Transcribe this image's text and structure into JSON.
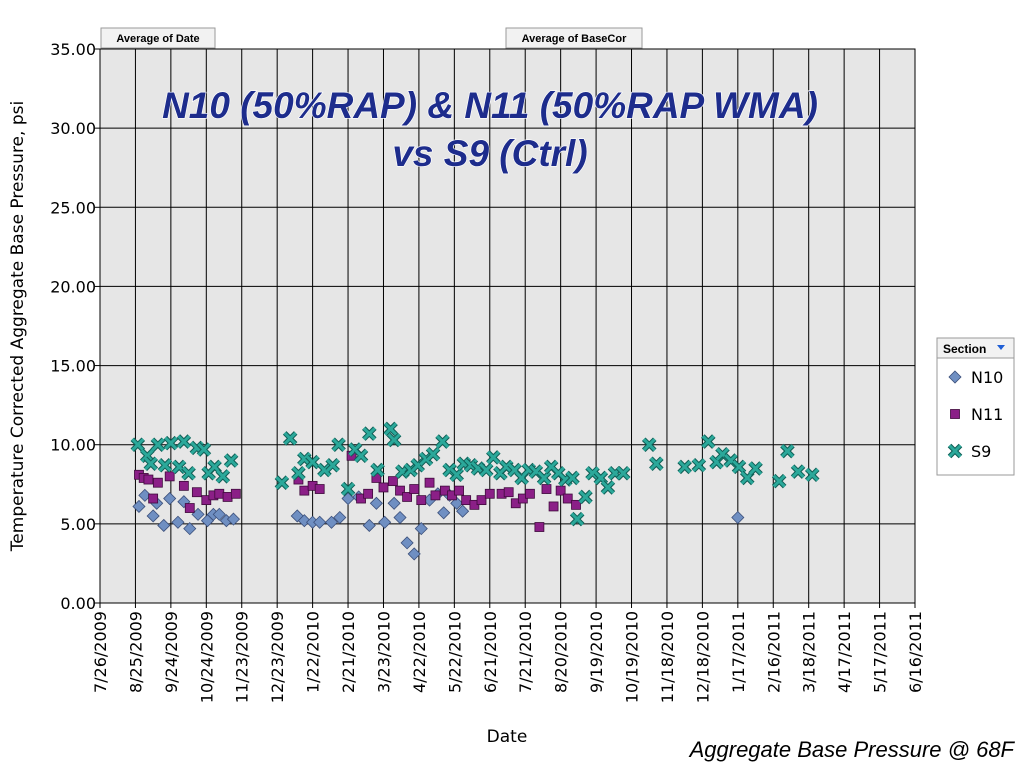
{
  "buttons": {
    "date_field": "Average of Date",
    "value_field": "Average of BaseCor"
  },
  "overlay_title": {
    "line1": "N10 (50%RAP) & N11 (50%RAP WMA)",
    "line2": "vs S9 (Ctrl)"
  },
  "footer": "Aggregate Base Pressure @ 68F",
  "legend": {
    "title": "Section",
    "items": [
      {
        "label": "N10",
        "marker": "diamond",
        "color": "#6f8fc2"
      },
      {
        "label": "N11",
        "marker": "square",
        "color": "#8b1f87"
      },
      {
        "label": "S9",
        "marker": "x",
        "color": "#2ba89a"
      }
    ]
  },
  "chart_data": {
    "type": "scatter",
    "xlabel": "Date",
    "ylabel": "Temperature Corrected Aggregate Base Pressure, psi",
    "x_ticks": [
      "7/26/2009",
      "8/25/2009",
      "9/24/2009",
      "10/24/2009",
      "11/23/2009",
      "12/23/2009",
      "1/22/2010",
      "2/21/2010",
      "3/23/2010",
      "4/22/2010",
      "5/22/2010",
      "6/21/2010",
      "7/21/2010",
      "8/20/2010",
      "9/19/2010",
      "10/19/2010",
      "11/18/2010",
      "12/18/2010",
      "1/17/2011",
      "2/16/2011",
      "3/18/2011",
      "4/17/2011",
      "5/17/2011",
      "6/16/2011"
    ],
    "y_ticks": [
      "0.00",
      "5.00",
      "10.00",
      "15.00",
      "20.00",
      "25.00",
      "30.00",
      "35.00"
    ],
    "xlim": [
      "2009-07-26",
      "2011-06-16"
    ],
    "ylim": [
      0,
      35
    ],
    "grid": true,
    "legend_position": "right",
    "series": [
      {
        "name": "N10",
        "marker": "diamond",
        "color": "#6f8fc2",
        "points": [
          [
            "2009-08-28",
            6.1
          ],
          [
            "2009-09-02",
            6.8
          ],
          [
            "2009-09-09",
            5.5
          ],
          [
            "2009-09-12",
            6.3
          ],
          [
            "2009-09-18",
            4.9
          ],
          [
            "2009-09-23",
            6.6
          ],
          [
            "2009-09-30",
            5.1
          ],
          [
            "2009-10-05",
            6.4
          ],
          [
            "2009-10-10",
            4.7
          ],
          [
            "2009-10-17",
            5.6
          ],
          [
            "2009-10-25",
            5.2
          ],
          [
            "2009-10-30",
            5.6
          ],
          [
            "2009-11-04",
            5.6
          ],
          [
            "2009-11-10",
            5.2
          ],
          [
            "2009-11-16",
            5.3
          ],
          [
            "2010-01-09",
            5.5
          ],
          [
            "2010-01-15",
            5.2
          ],
          [
            "2010-01-22",
            5.1
          ],
          [
            "2010-01-28",
            5.1
          ],
          [
            "2010-02-07",
            5.1
          ],
          [
            "2010-02-14",
            5.4
          ],
          [
            "2010-02-21",
            6.6
          ],
          [
            "2010-03-02",
            6.7
          ],
          [
            "2010-03-11",
            4.9
          ],
          [
            "2010-03-17",
            6.3
          ],
          [
            "2010-03-24",
            5.1
          ],
          [
            "2010-04-01",
            6.3
          ],
          [
            "2010-04-06",
            5.4
          ],
          [
            "2010-04-12",
            3.8
          ],
          [
            "2010-04-18",
            3.1
          ],
          [
            "2010-04-24",
            4.7
          ],
          [
            "2010-05-01",
            6.5
          ],
          [
            "2010-05-08",
            6.9
          ],
          [
            "2010-05-13",
            5.7
          ],
          [
            "2010-05-18",
            6.8
          ],
          [
            "2010-05-24",
            6.3
          ],
          [
            "2010-05-29",
            5.8
          ],
          [
            "2011-01-17",
            5.4
          ]
        ]
      },
      {
        "name": "N11",
        "marker": "square",
        "color": "#8b1f87",
        "points": [
          [
            "2009-08-28",
            8.1
          ],
          [
            "2009-09-01",
            7.9
          ],
          [
            "2009-09-05",
            7.8
          ],
          [
            "2009-09-09",
            6.6
          ],
          [
            "2009-09-13",
            7.6
          ],
          [
            "2009-09-23",
            8.0
          ],
          [
            "2009-10-05",
            7.4
          ],
          [
            "2009-10-10",
            6.0
          ],
          [
            "2009-10-16",
            7.0
          ],
          [
            "2009-10-24",
            6.5
          ],
          [
            "2009-10-30",
            6.8
          ],
          [
            "2009-11-04",
            6.9
          ],
          [
            "2009-11-11",
            6.7
          ],
          [
            "2009-11-18",
            6.9
          ],
          [
            "2010-01-10",
            7.8
          ],
          [
            "2010-01-15",
            7.1
          ],
          [
            "2010-01-22",
            7.4
          ],
          [
            "2010-01-28",
            7.2
          ],
          [
            "2010-02-24",
            9.3
          ],
          [
            "2010-03-04",
            6.6
          ],
          [
            "2010-03-10",
            6.9
          ],
          [
            "2010-03-17",
            7.9
          ],
          [
            "2010-03-23",
            7.3
          ],
          [
            "2010-03-31",
            7.7
          ],
          [
            "2010-04-06",
            7.1
          ],
          [
            "2010-04-12",
            6.7
          ],
          [
            "2010-04-18",
            7.2
          ],
          [
            "2010-04-24",
            6.5
          ],
          [
            "2010-05-01",
            7.6
          ],
          [
            "2010-05-06",
            6.8
          ],
          [
            "2010-05-14",
            7.1
          ],
          [
            "2010-05-20",
            6.8
          ],
          [
            "2010-05-26",
            7.1
          ],
          [
            "2010-06-01",
            6.5
          ],
          [
            "2010-06-08",
            6.2
          ],
          [
            "2010-06-14",
            6.5
          ],
          [
            "2010-06-21",
            6.9
          ],
          [
            "2010-07-01",
            6.9
          ],
          [
            "2010-07-07",
            7.0
          ],
          [
            "2010-07-13",
            6.3
          ],
          [
            "2010-07-19",
            6.6
          ],
          [
            "2010-07-25",
            6.9
          ],
          [
            "2010-08-02",
            4.8
          ],
          [
            "2010-08-08",
            7.2
          ],
          [
            "2010-08-14",
            6.1
          ],
          [
            "2010-08-20",
            7.1
          ],
          [
            "2010-08-26",
            6.6
          ],
          [
            "2010-09-02",
            6.2
          ]
        ]
      },
      {
        "name": "S9",
        "marker": "x",
        "color": "#2ba89a",
        "points": [
          [
            "2009-08-27",
            10.0
          ],
          [
            "2009-09-04",
            9.3
          ],
          [
            "2009-09-07",
            8.8
          ],
          [
            "2009-09-13",
            10.0
          ],
          [
            "2009-09-19",
            8.7
          ],
          [
            "2009-09-24",
            10.1
          ],
          [
            "2009-10-01",
            8.6
          ],
          [
            "2009-10-05",
            10.2
          ],
          [
            "2009-10-09",
            8.2
          ],
          [
            "2009-10-16",
            9.8
          ],
          [
            "2009-10-22",
            9.7
          ],
          [
            "2009-10-26",
            8.2
          ],
          [
            "2009-10-31",
            8.6
          ],
          [
            "2009-11-07",
            8.0
          ],
          [
            "2009-11-14",
            9.0
          ],
          [
            "2009-12-27",
            7.6
          ],
          [
            "2010-01-03",
            10.4
          ],
          [
            "2010-01-10",
            8.2
          ],
          [
            "2010-01-15",
            9.1
          ],
          [
            "2010-01-22",
            8.9
          ],
          [
            "2010-02-01",
            8.4
          ],
          [
            "2010-02-08",
            8.7
          ],
          [
            "2010-02-13",
            10.0
          ],
          [
            "2010-02-21",
            7.2
          ],
          [
            "2010-02-27",
            9.7
          ],
          [
            "2010-03-04",
            9.3
          ],
          [
            "2010-03-11",
            10.7
          ],
          [
            "2010-03-18",
            8.4
          ],
          [
            "2010-03-29",
            11.0
          ],
          [
            "2010-04-01",
            10.3
          ],
          [
            "2010-04-08",
            8.3
          ],
          [
            "2010-04-15",
            8.4
          ],
          [
            "2010-04-21",
            8.7
          ],
          [
            "2010-04-28",
            9.1
          ],
          [
            "2010-05-04",
            9.4
          ],
          [
            "2010-05-12",
            10.2
          ],
          [
            "2010-05-18",
            8.4
          ],
          [
            "2010-05-24",
            8.1
          ],
          [
            "2010-05-30",
            8.8
          ],
          [
            "2010-06-05",
            8.7
          ],
          [
            "2010-06-11",
            8.5
          ],
          [
            "2010-06-18",
            8.4
          ],
          [
            "2010-06-24",
            9.2
          ],
          [
            "2010-06-30",
            8.2
          ],
          [
            "2010-07-05",
            8.6
          ],
          [
            "2010-07-12",
            8.4
          ],
          [
            "2010-07-18",
            7.9
          ],
          [
            "2010-07-24",
            8.4
          ],
          [
            "2010-07-30",
            8.3
          ],
          [
            "2010-08-06",
            7.9
          ],
          [
            "2010-08-12",
            8.6
          ],
          [
            "2010-08-18",
            8.2
          ],
          [
            "2010-08-24",
            7.8
          ],
          [
            "2010-08-30",
            7.9
          ],
          [
            "2010-09-03",
            5.3
          ],
          [
            "2010-09-10",
            6.7
          ],
          [
            "2010-09-16",
            8.2
          ],
          [
            "2010-09-23",
            7.9
          ],
          [
            "2010-09-29",
            7.3
          ],
          [
            "2010-10-05",
            8.2
          ],
          [
            "2010-10-12",
            8.2
          ],
          [
            "2010-11-03",
            10.0
          ],
          [
            "2010-11-09",
            8.8
          ],
          [
            "2010-12-03",
            8.6
          ],
          [
            "2010-12-15",
            8.7
          ],
          [
            "2010-12-23",
            10.2
          ],
          [
            "2010-12-30",
            8.9
          ],
          [
            "2011-01-04",
            9.4
          ],
          [
            "2011-01-11",
            9.0
          ],
          [
            "2011-01-18",
            8.6
          ],
          [
            "2011-01-25",
            7.9
          ],
          [
            "2011-02-01",
            8.5
          ],
          [
            "2011-02-21",
            7.7
          ],
          [
            "2011-02-28",
            9.6
          ],
          [
            "2011-03-09",
            8.3
          ],
          [
            "2011-03-21",
            8.1
          ]
        ]
      }
    ]
  }
}
